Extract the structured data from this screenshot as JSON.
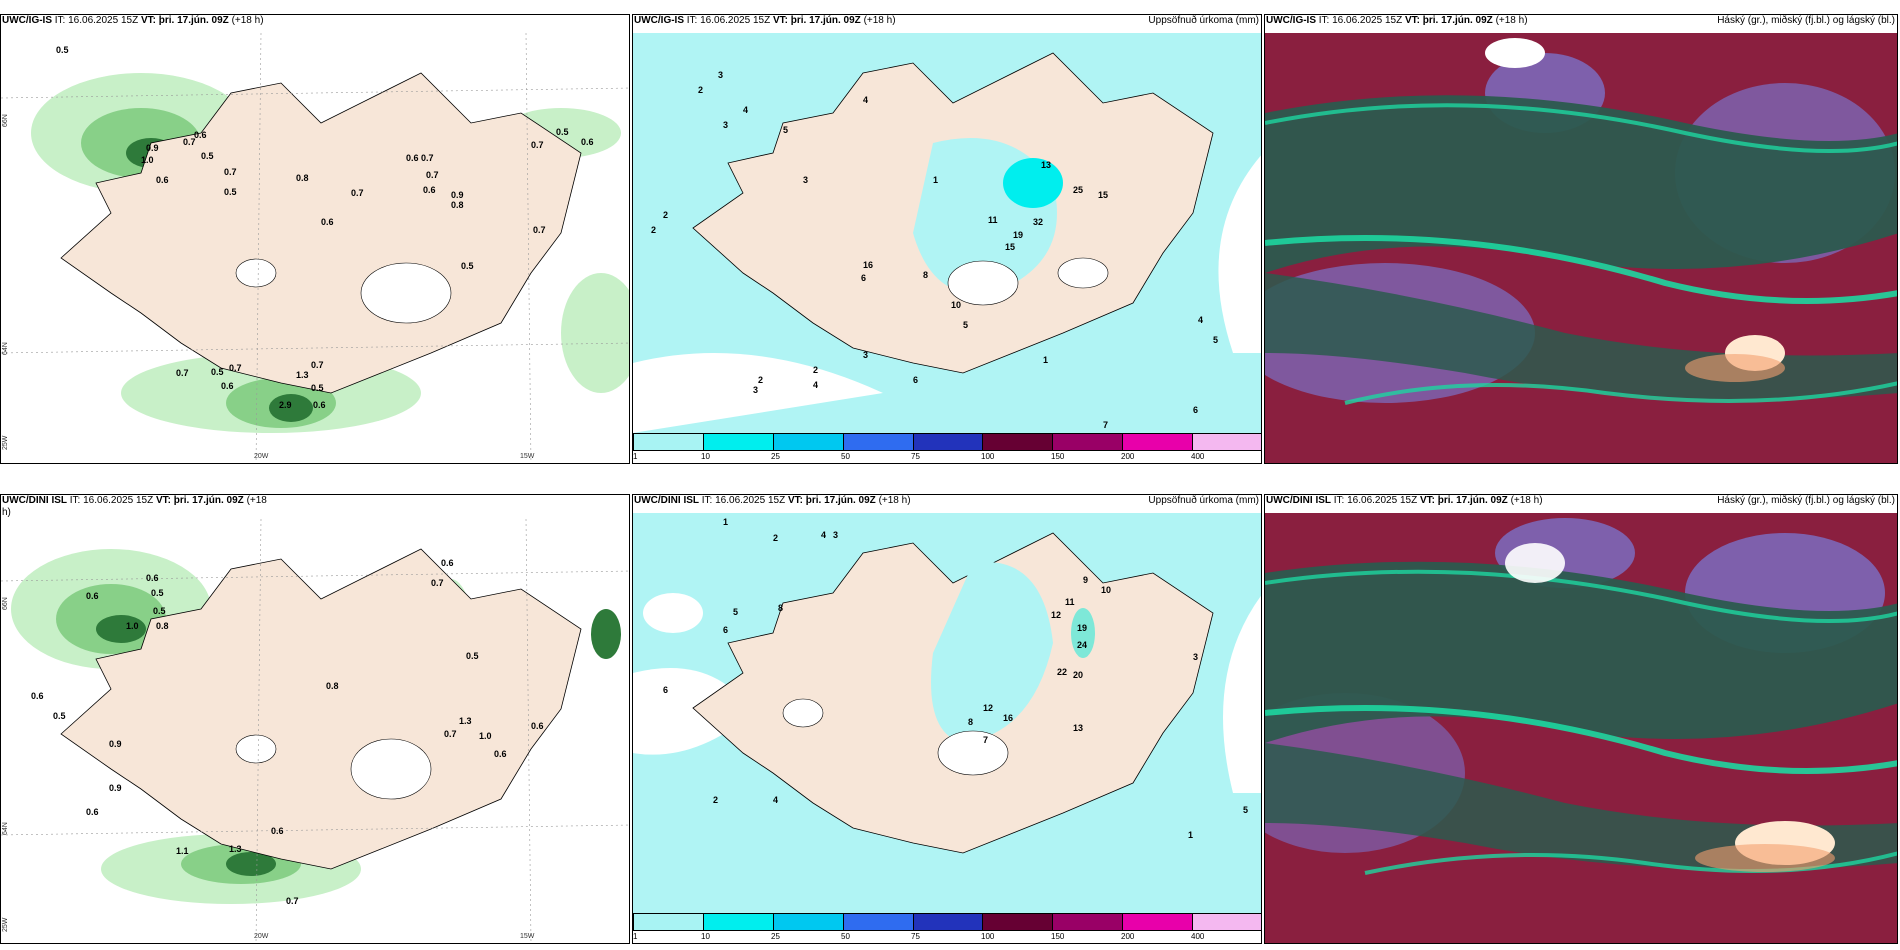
{
  "rows": [
    {
      "wind_panel": {
        "model": "UWC/IG-IS",
        "it_label": "IT:",
        "init": "16.06.2025 15Z",
        "vt_label": "VT:",
        "valid": "þri. 17.jún. 09Z",
        "lead": "(+18 h)",
        "lat_labels": [
          "66N",
          "64N",
          "25W"
        ],
        "lon_labels": [
          "20W",
          "15W"
        ],
        "values": [
          "0.5",
          "0.9",
          "1.0",
          "0.6",
          "0.7",
          "0.6",
          "0.5",
          "0.7",
          "0.5",
          "0.8",
          "0.7",
          "0.6",
          "0.6",
          "0.7",
          "0.7",
          "0.6",
          "0.9",
          "0.8",
          "0.5",
          "0.7",
          "0.6",
          "0.7",
          "0.5",
          "0.7",
          "0.5",
          "0.6",
          "0.7",
          "0.5",
          "0.6",
          "1.3",
          "2.9",
          "0.7"
        ]
      },
      "precip_panel": {
        "model": "UWC/IG-IS",
        "it_label": "IT:",
        "init": "16.06.2025 15Z",
        "vt_label": "VT:",
        "valid": "þri. 17.jún. 09Z",
        "lead": "(+18 h)",
        "right_title": "Uppsöfnuð úrkoma (mm)",
        "values": [
          "2",
          "3",
          "4",
          "2",
          "5",
          "3",
          "2",
          "4",
          "1",
          "3",
          "13",
          "25",
          "15",
          "32",
          "19",
          "15",
          "11",
          "16",
          "6",
          "8",
          "10",
          "5",
          "3",
          "2",
          "4",
          "3",
          "2",
          "6",
          "1",
          "5",
          "4",
          "6",
          "7"
        ]
      },
      "cloud_panel": {
        "model": "UWC/IG-IS",
        "it_label": "IT:",
        "init": "16.06.2025 15Z",
        "vt_label": "VT:",
        "valid": "þri. 17.jún. 09Z",
        "lead": "(+18 h)",
        "right_title": "Háský (gr.), miðský (fj.bl.) og lágský (bl.)"
      }
    },
    {
      "wind_panel": {
        "model": "UWC/DINI ISL",
        "it_label": "IT:",
        "init": "16.06.2025 15Z",
        "vt_label": "VT:",
        "valid": "þri. 17.jún. 09Z",
        "lead": "(+18",
        "lead2": "h)",
        "lat_labels": [
          "66N",
          "64N",
          "25W"
        ],
        "lon_labels": [
          "20W",
          "15W"
        ],
        "values": [
          "0.6",
          "0.5",
          "0.9",
          "1.0",
          "0.8",
          "0.6",
          "0.5",
          "0.6",
          "0.5",
          "0.8",
          "0.6",
          "0.7",
          "0.5",
          "1.3",
          "1.0",
          "0.6",
          "0.7",
          "0.9",
          "0.6",
          "0.6",
          "0.7",
          "1.1",
          "1.3",
          "0.6"
        ]
      },
      "precip_panel": {
        "model": "UWC/DINI ISL",
        "it_label": "IT:",
        "init": "16.06.2025 15Z",
        "vt_label": "VT:",
        "valid": "þri. 17.jún. 09Z",
        "lead": "(+18 h)",
        "right_title": "Uppsöfnuð úrkoma (mm)",
        "values": [
          "1",
          "2",
          "4",
          "3",
          "8",
          "5",
          "6",
          "9",
          "10",
          "11",
          "12",
          "19",
          "24",
          "22",
          "20",
          "13",
          "16",
          "12",
          "7",
          "8",
          "3",
          "2",
          "4",
          "1",
          "5",
          "6"
        ]
      },
      "cloud_panel": {
        "model": "UWC/DINI ISL",
        "it_label": "IT:",
        "init": "16.06.2025 15Z",
        "vt_label": "VT:",
        "valid": "þri. 17.jún. 09Z",
        "lead": "(+18 h)",
        "right_title": "Háský (gr.), miðský (fj.bl.) og lágský (bl.)"
      }
    }
  ],
  "colorbar": {
    "ticks": [
      "1",
      "10",
      "25",
      "50",
      "75",
      "100",
      "150",
      "200",
      "400"
    ],
    "colors": [
      "#a8f3f3",
      "#00eeee",
      "#00c8f0",
      "#2f6cf0",
      "#2233bb",
      "#660033",
      "#990066",
      "#e800aa",
      "#f4b8f0"
    ]
  },
  "colors": {
    "land": "#f7e6d8",
    "sea_light": "#b0f4f4",
    "green_light": "#c8f0c8",
    "green_mid": "#88d088",
    "green_dark": "#2e7a3a",
    "cloud_dark": "#2c5a4e",
    "cloud_teal": "#1ed6a0",
    "cloud_red": "#8a1f3f",
    "cloud_blue": "#7a70c8"
  }
}
